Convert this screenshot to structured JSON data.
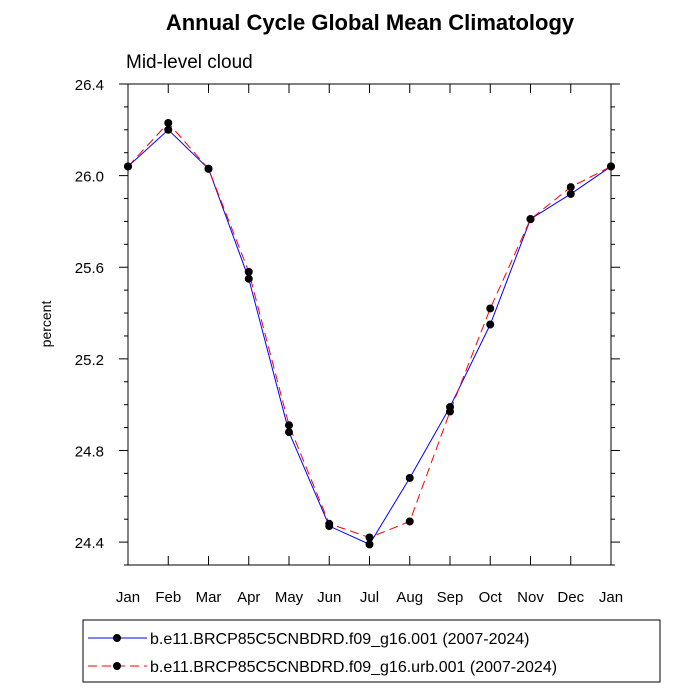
{
  "chart_data": {
    "type": "line",
    "title": "Annual Cycle Global Mean Climatology",
    "subtitle": "Mid-level cloud",
    "xlabel": "",
    "ylabel": "percent",
    "categories": [
      "Jan",
      "Feb",
      "Mar",
      "Apr",
      "May",
      "Jun",
      "Jul",
      "Aug",
      "Sep",
      "Oct",
      "Nov",
      "Dec",
      "Jan"
    ],
    "ylim": [
      24.3,
      26.4
    ],
    "yticks": [
      24.4,
      24.8,
      25.2,
      25.6,
      26.0,
      26.4
    ],
    "ytick_labels": [
      "24.4",
      "24.8",
      "25.2",
      "25.6",
      "26.0",
      "26.4"
    ],
    "grid": false,
    "legend_position": "bottom",
    "series": [
      {
        "name": "b.e11.BRCP85C5CNBDRD.f09_g16.001 (2007-2024)",
        "color": "#0000ff",
        "dash": "solid",
        "values": [
          26.04,
          26.2,
          26.03,
          25.55,
          24.88,
          24.47,
          24.39,
          24.68,
          24.99,
          25.35,
          25.81,
          25.92,
          26.04
        ]
      },
      {
        "name": "b.e11.BRCP85C5CNBDRD.f09_g16.urb.001 (2007-2024)",
        "color": "#ff0000",
        "dash": "dashed",
        "values": [
          26.04,
          26.23,
          26.03,
          25.58,
          24.91,
          24.48,
          24.42,
          24.49,
          24.97,
          25.42,
          25.81,
          25.95,
          26.04
        ]
      }
    ]
  }
}
